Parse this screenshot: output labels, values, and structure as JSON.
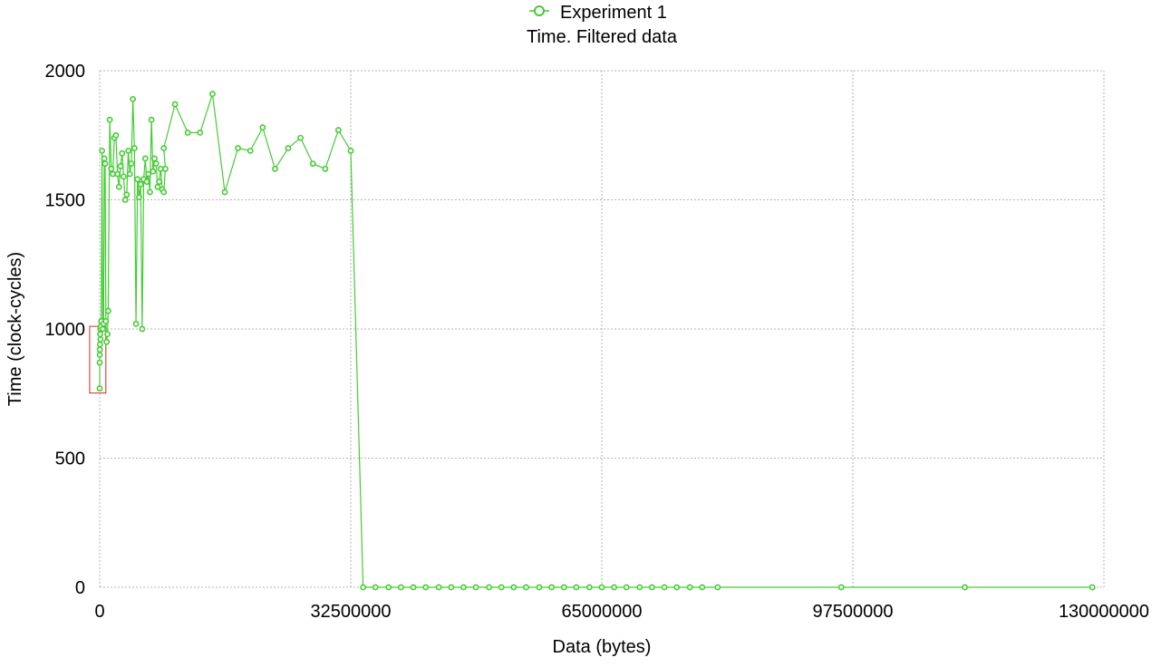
{
  "chart_data": {
    "type": "line",
    "title": "Time. Filtered data",
    "xlabel": "Data (bytes)",
    "ylabel": "Time (clock-cycles)",
    "xlim": [
      0,
      130000000
    ],
    "ylim": [
      0,
      2000
    ],
    "xticks": [
      0,
      32500000,
      65000000,
      97500000,
      130000000
    ],
    "yticks": [
      0,
      500,
      1000,
      1500,
      2000
    ],
    "xtick_labels": [
      "0",
      "32500000",
      "65000000",
      "97500000",
      "130000000"
    ],
    "ytick_labels": [
      "0",
      "500",
      "1000",
      "1500",
      "2000"
    ],
    "grid": true,
    "legend_position": "top-center",
    "series": [
      {
        "name": "Experiment 1",
        "color": "#44cc33",
        "marker": "circle-open",
        "points": [
          [
            1000,
            770
          ],
          [
            5000,
            870
          ],
          [
            10000,
            900
          ],
          [
            20000,
            920
          ],
          [
            40000,
            940
          ],
          [
            60000,
            980
          ],
          [
            80000,
            1000
          ],
          [
            100000,
            960
          ],
          [
            150000,
            1010
          ],
          [
            200000,
            1030
          ],
          [
            300000,
            1690
          ],
          [
            400000,
            1000
          ],
          [
            500000,
            1020
          ],
          [
            600000,
            1660
          ],
          [
            700000,
            1640
          ],
          [
            800000,
            1030
          ],
          [
            900000,
            950
          ],
          [
            1000000,
            980
          ],
          [
            1100000,
            1070
          ],
          [
            1300000,
            1810
          ],
          [
            1500000,
            1620
          ],
          [
            1700000,
            1600
          ],
          [
            1900000,
            1740
          ],
          [
            2100000,
            1750
          ],
          [
            2300000,
            1600
          ],
          [
            2500000,
            1550
          ],
          [
            2700000,
            1630
          ],
          [
            2900000,
            1680
          ],
          [
            3100000,
            1590
          ],
          [
            3300000,
            1500
          ],
          [
            3500000,
            1520
          ],
          [
            3700000,
            1690
          ],
          [
            3900000,
            1600
          ],
          [
            4100000,
            1640
          ],
          [
            4300000,
            1890
          ],
          [
            4500000,
            1700
          ],
          [
            4700000,
            1020
          ],
          [
            4900000,
            1580
          ],
          [
            5100000,
            1510
          ],
          [
            5300000,
            1560
          ],
          [
            5500000,
            1000
          ],
          [
            5700000,
            1580
          ],
          [
            5900000,
            1660
          ],
          [
            6100000,
            1570
          ],
          [
            6300000,
            1600
          ],
          [
            6500000,
            1530
          ],
          [
            6700000,
            1810
          ],
          [
            6900000,
            1610
          ],
          [
            7100000,
            1660
          ],
          [
            7300000,
            1640
          ],
          [
            7500000,
            1550
          ],
          [
            7700000,
            1570
          ],
          [
            7900000,
            1620
          ],
          [
            8100000,
            1540
          ],
          [
            8300000,
            1530
          ],
          [
            8500000,
            1620
          ],
          [
            8300000,
            1700
          ],
          [
            9750000,
            1870
          ],
          [
            11400000,
            1760
          ],
          [
            13000000,
            1760
          ],
          [
            14600000,
            1910
          ],
          [
            16200000,
            1530
          ],
          [
            17900000,
            1700
          ],
          [
            19500000,
            1690
          ],
          [
            21100000,
            1780
          ],
          [
            22700000,
            1620
          ],
          [
            24400000,
            1700
          ],
          [
            26000000,
            1740
          ],
          [
            27600000,
            1640
          ],
          [
            29200000,
            1620
          ],
          [
            30900000,
            1770
          ],
          [
            32500000,
            1690
          ],
          [
            34100000,
            0
          ],
          [
            35700000,
            0
          ],
          [
            37400000,
            0
          ],
          [
            39000000,
            0
          ],
          [
            40600000,
            0
          ],
          [
            42200000,
            0
          ],
          [
            43900000,
            0
          ],
          [
            45500000,
            0
          ],
          [
            47100000,
            0
          ],
          [
            48700000,
            0
          ],
          [
            50400000,
            0
          ],
          [
            52000000,
            0
          ],
          [
            53600000,
            0
          ],
          [
            55200000,
            0
          ],
          [
            56900000,
            0
          ],
          [
            58500000,
            0
          ],
          [
            60100000,
            0
          ],
          [
            61700000,
            0
          ],
          [
            63400000,
            0
          ],
          [
            65000000,
            0
          ],
          [
            66600000,
            0
          ],
          [
            68200000,
            0
          ],
          [
            69900000,
            0
          ],
          [
            71500000,
            0
          ],
          [
            73100000,
            0
          ],
          [
            74700000,
            0
          ],
          [
            76400000,
            0
          ],
          [
            78000000,
            0
          ],
          [
            80000000,
            0
          ],
          [
            96000000,
            0
          ],
          [
            112000000,
            0
          ],
          [
            128500000,
            0
          ]
        ]
      }
    ],
    "annotations": [
      {
        "type": "highlight-box",
        "color": "#dd2222",
        "x_range": [
          -1300000,
          800000
        ],
        "y_range": [
          752,
          1010
        ]
      }
    ]
  }
}
